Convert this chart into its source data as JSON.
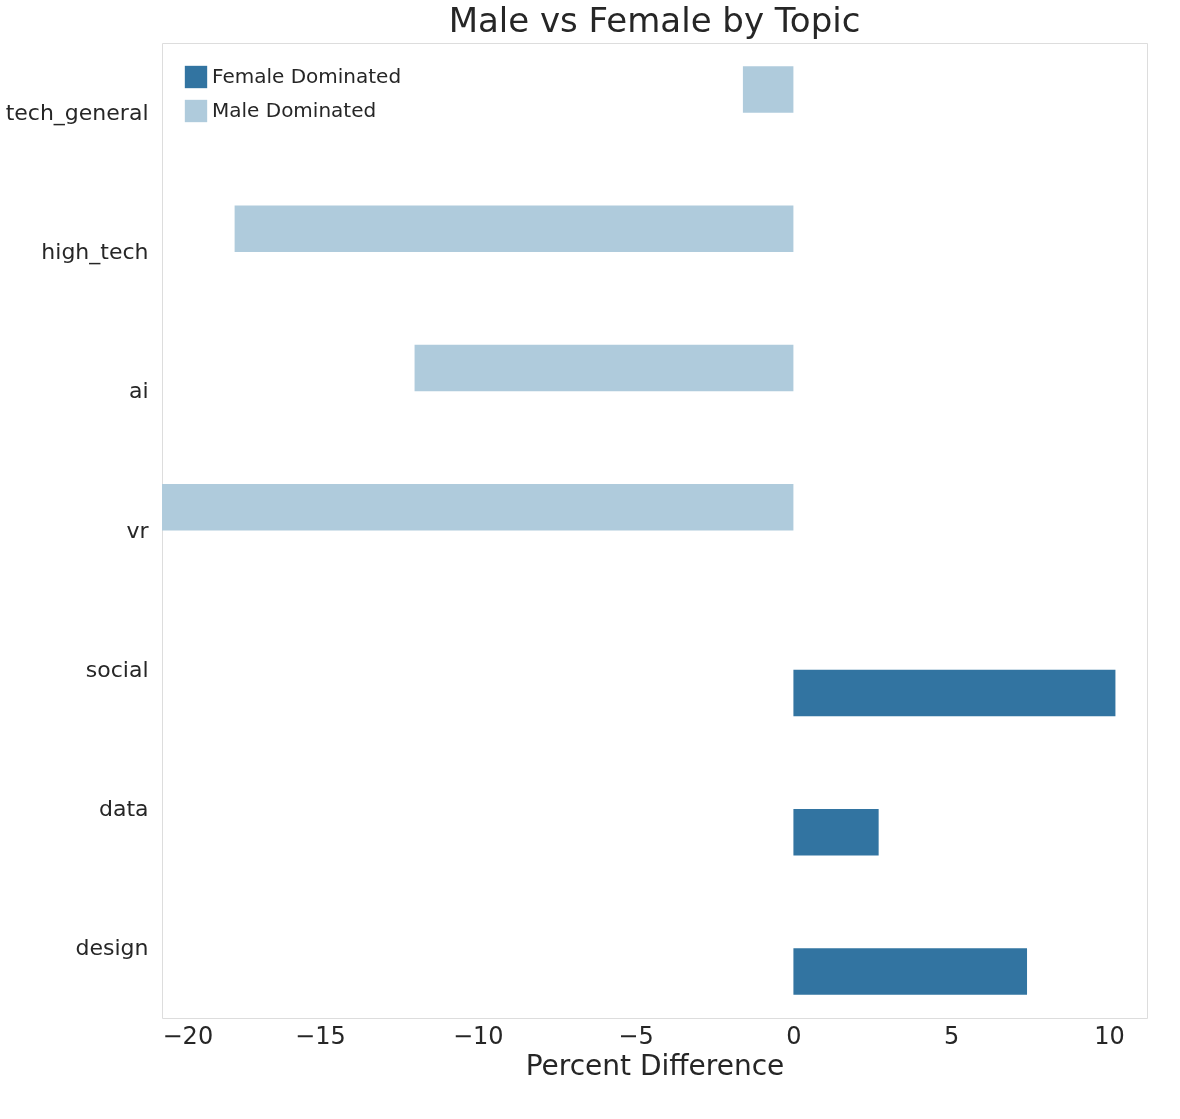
{
  "chart_data": {
    "type": "bar",
    "orientation": "horizontal",
    "title": "Male vs Female by Topic",
    "xlabel": "Percent Difference",
    "categories": [
      "tech_general",
      "high_tech",
      "ai",
      "vr",
      "social",
      "data",
      "design"
    ],
    "series": [
      {
        "name": "Female Dominated",
        "color": "#3274a1",
        "values": [
          null,
          null,
          null,
          null,
          10.2,
          2.7,
          7.4
        ]
      },
      {
        "name": "Male Dominated",
        "color": "#afcbdc",
        "values": [
          -1.6,
          -17.7,
          -12.0,
          -20.0,
          null,
          null,
          null
        ]
      }
    ],
    "xlim": [
      -20,
      11.2
    ],
    "xticks": [
      -20,
      -15,
      -10,
      -5,
      0,
      5,
      10
    ],
    "grid": false,
    "legend": "top left"
  }
}
